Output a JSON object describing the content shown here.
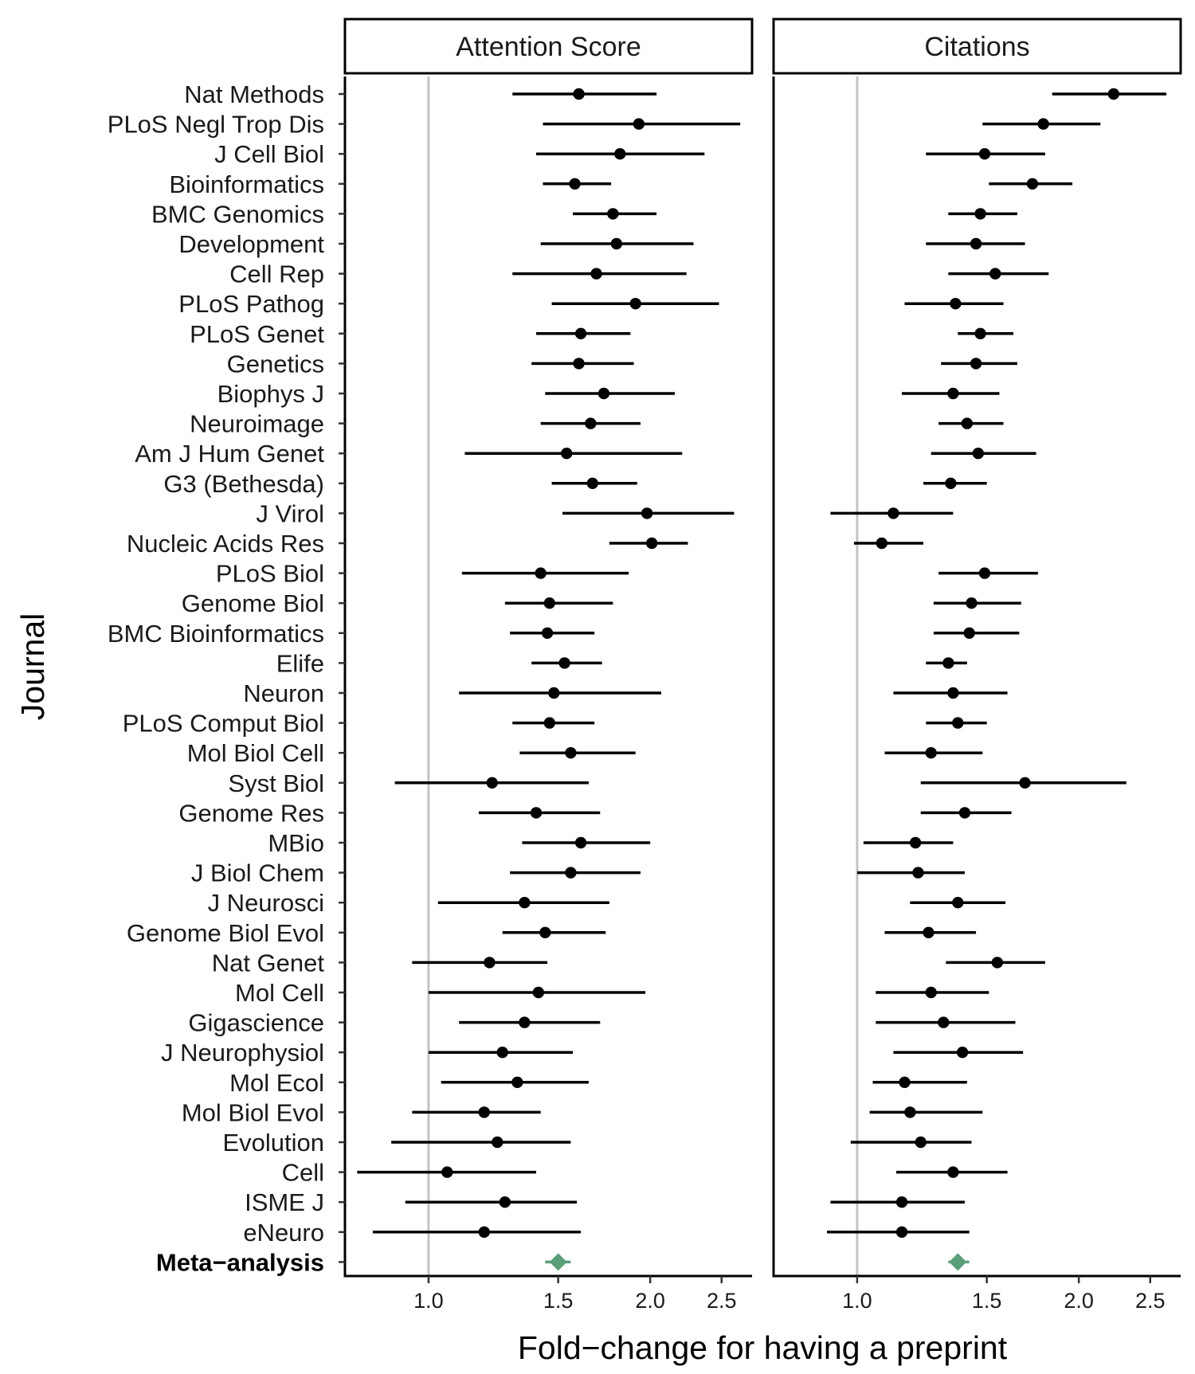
{
  "chart_data": {
    "type": "forest",
    "xlabel": "Fold−change for having a preprint",
    "ylabel": "Journal",
    "x_scale": "log",
    "x_ticks": [
      1.0,
      1.5,
      2.0,
      2.5
    ],
    "x_tick_labels": [
      "1.0",
      "1.5",
      "2.0",
      "2.5"
    ],
    "xlim": [
      0.77,
      2.75
    ],
    "reference_line": 1.0,
    "meta_color": "#5b9e7a",
    "journals": [
      "Nat Methods",
      "PLoS Negl Trop Dis",
      "J Cell Biol",
      "Bioinformatics",
      "BMC Genomics",
      "Development",
      "Cell Rep",
      "PLoS Pathog",
      "PLoS Genet",
      "Genetics",
      "Biophys J",
      "Neuroimage",
      "Am J Hum Genet",
      "G3 (Bethesda)",
      "J Virol",
      "Nucleic Acids Res",
      "PLoS Biol",
      "Genome Biol",
      "BMC Bioinformatics",
      "Elife",
      "Neuron",
      "PLoS Comput Biol",
      "Mol Biol Cell",
      "Syst Biol",
      "Genome Res",
      "MBio",
      "J Biol Chem",
      "J Neurosci",
      "Genome Biol Evol",
      "Nat Genet",
      "Mol Cell",
      "Gigascience",
      "J Neurophysiol",
      "Mol Ecol",
      "Mol Biol Evol",
      "Evolution",
      "Cell",
      "ISME J",
      "eNeuro",
      "Meta−analysis"
    ],
    "facets": [
      {
        "title": "Attention Score",
        "estimate": [
          1.6,
          1.93,
          1.82,
          1.58,
          1.78,
          1.8,
          1.69,
          1.91,
          1.61,
          1.6,
          1.73,
          1.66,
          1.54,
          1.67,
          1.98,
          2.01,
          1.42,
          1.46,
          1.45,
          1.53,
          1.48,
          1.46,
          1.56,
          1.22,
          1.4,
          1.61,
          1.56,
          1.35,
          1.44,
          1.21,
          1.41,
          1.35,
          1.26,
          1.32,
          1.19,
          1.24,
          1.06,
          1.27,
          1.19,
          1.5
        ],
        "lower": [
          1.3,
          1.43,
          1.4,
          1.43,
          1.57,
          1.42,
          1.3,
          1.47,
          1.4,
          1.38,
          1.44,
          1.42,
          1.12,
          1.47,
          1.52,
          1.76,
          1.11,
          1.27,
          1.29,
          1.38,
          1.1,
          1.3,
          1.33,
          0.9,
          1.17,
          1.34,
          1.29,
          1.03,
          1.26,
          0.95,
          1.0,
          1.1,
          1.0,
          1.04,
          0.95,
          0.89,
          0.8,
          0.93,
          0.84,
          1.44
        ],
        "upper": [
          2.04,
          2.65,
          2.37,
          1.77,
          2.04,
          2.29,
          2.24,
          2.48,
          1.88,
          1.9,
          2.16,
          1.94,
          2.21,
          1.92,
          2.6,
          2.25,
          1.87,
          1.78,
          1.68,
          1.72,
          2.07,
          1.68,
          1.91,
          1.65,
          1.71,
          2.0,
          1.94,
          1.76,
          1.74,
          1.45,
          1.97,
          1.71,
          1.57,
          1.65,
          1.42,
          1.56,
          1.4,
          1.59,
          1.61,
          1.56
        ]
      },
      {
        "title": "Citations",
        "estimate": [
          2.23,
          1.79,
          1.49,
          1.73,
          1.47,
          1.45,
          1.54,
          1.36,
          1.47,
          1.45,
          1.35,
          1.41,
          1.46,
          1.34,
          1.12,
          1.08,
          1.49,
          1.43,
          1.42,
          1.33,
          1.35,
          1.37,
          1.26,
          1.69,
          1.4,
          1.2,
          1.21,
          1.37,
          1.25,
          1.55,
          1.26,
          1.31,
          1.39,
          1.16,
          1.18,
          1.22,
          1.35,
          1.15,
          1.15,
          1.37
        ],
        "lower": [
          1.84,
          1.48,
          1.24,
          1.51,
          1.33,
          1.24,
          1.33,
          1.16,
          1.37,
          1.3,
          1.15,
          1.29,
          1.26,
          1.23,
          0.92,
          0.99,
          1.29,
          1.27,
          1.27,
          1.24,
          1.12,
          1.24,
          1.09,
          1.22,
          1.22,
          1.02,
          1.0,
          1.18,
          1.09,
          1.32,
          1.06,
          1.06,
          1.12,
          1.05,
          1.04,
          0.98,
          1.13,
          0.92,
          0.91,
          1.33
        ],
        "upper": [
          2.63,
          2.14,
          1.8,
          1.96,
          1.65,
          1.69,
          1.82,
          1.58,
          1.63,
          1.65,
          1.56,
          1.58,
          1.75,
          1.5,
          1.35,
          1.23,
          1.76,
          1.67,
          1.66,
          1.41,
          1.6,
          1.5,
          1.48,
          2.32,
          1.62,
          1.35,
          1.4,
          1.59,
          1.45,
          1.8,
          1.51,
          1.64,
          1.68,
          1.41,
          1.48,
          1.43,
          1.6,
          1.4,
          1.42,
          1.42
        ]
      }
    ]
  }
}
